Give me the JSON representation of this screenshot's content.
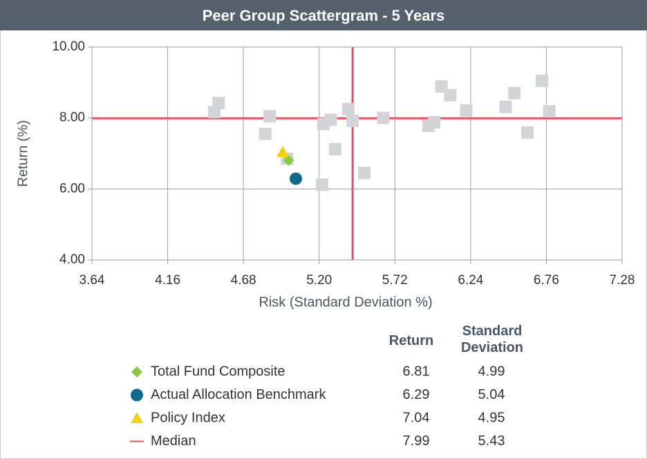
{
  "chart_data": {
    "type": "scatter",
    "title": "Peer Group Scattergram - 5 Years",
    "xlabel": "Risk (Standard Deviation %)",
    "ylabel": "Return (%)",
    "xlim": [
      3.64,
      7.28
    ],
    "ylim": [
      4,
      10
    ],
    "xticks": [
      3.64,
      4.16,
      4.68,
      {
        "value": 5.2,
        "label": "5.20"
      },
      5.72,
      6.24,
      6.76,
      7.28
    ],
    "yticks": [
      {
        "value": 4,
        "label": "4.00"
      },
      {
        "value": 6,
        "label": "6.00"
      },
      {
        "value": 8,
        "label": "8.00"
      },
      {
        "value": 10,
        "label": "10.00"
      }
    ],
    "grid": true,
    "table_headers": [
      "Return",
      "Standard Deviation"
    ],
    "series": [
      {
        "color": "#d2d4d8",
        "marker": "square",
        "x": [
          4.48,
          4.51,
          4.83,
          4.86,
          4.98,
          5.22,
          5.23,
          5.28,
          5.31,
          5.4,
          5.43,
          5.51,
          5.64,
          5.95,
          5.99,
          6.04,
          6.1,
          6.21,
          6.48,
          6.54,
          6.63,
          6.73,
          6.78
        ],
        "values": [
          8.17,
          8.42,
          7.55,
          8.05,
          6.85,
          6.12,
          7.83,
          7.95,
          7.12,
          8.25,
          7.92,
          6.45,
          8.0,
          7.78,
          7.88,
          8.89,
          8.64,
          8.21,
          8.31,
          8.7,
          7.59,
          9.05,
          8.19
        ]
      },
      {
        "name": "Total Fund Composite",
        "color": "#8dc63f",
        "marker": "diamond",
        "x": [
          4.99
        ],
        "values": [
          6.81
        ],
        "value_labels": [
          "6.81"
        ],
        "x_labels": [
          "4.99"
        ]
      },
      {
        "name": "Actual Allocation Benchmark",
        "color": "#0f6a8b",
        "marker": "circle",
        "x": [
          5.04
        ],
        "values": [
          6.29
        ],
        "value_labels": [
          "6.29"
        ],
        "x_labels": [
          "5.04"
        ]
      },
      {
        "name": "Policy Index",
        "color": "#f5d10f",
        "marker": "triangle",
        "x": [
          4.95
        ],
        "values": [
          7.04
        ],
        "value_labels": [
          "7.04"
        ],
        "x_labels": [
          "4.95"
        ]
      },
      {
        "name": "Median",
        "color": "#f04e5e",
        "marker": "line",
        "x": [
          5.43
        ],
        "values": [
          7.99
        ],
        "value_labels": [
          "7.99"
        ],
        "x_labels": [
          "5.43"
        ]
      }
    ]
  }
}
